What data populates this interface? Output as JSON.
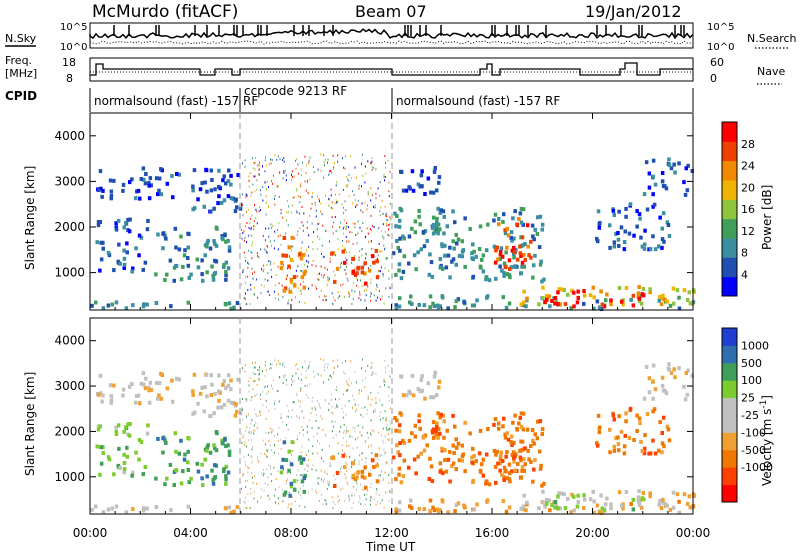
{
  "header": {
    "station": "McMurdo (fitACF)",
    "beam": "Beam 07",
    "date": "19/Jan/2012"
  },
  "panels": {
    "nsky_label": "N.Sky",
    "nsky_ticks": [
      "10^5",
      "10^0"
    ],
    "nsearch_label": "N.Search",
    "freq_label_1": "Freq.",
    "freq_label_2": "[MHz]",
    "freq_ticks": [
      "18",
      "8"
    ],
    "nave_label": "Nave",
    "nave_ticks": [
      "60",
      "0"
    ],
    "cpid_label": "CPID",
    "cpid_segments": [
      "normalsound (fast) -157 RF",
      "ccpcode 9213 RF",
      "normalsound (fast) -157 RF"
    ]
  },
  "colors": {
    "power_scale": [
      "#0000ff",
      "#1f4fb0",
      "#3a8fa0",
      "#3f9f5a",
      "#8cc43c",
      "#f0b400",
      "#f08a00",
      "#f04000",
      "#ff0000"
    ],
    "velocity_scale": [
      "#ff0000",
      "#ff4000",
      "#f07800",
      "#f0a030",
      "#c0c0c0",
      "#c0c0c0",
      "#7ccc30",
      "#3f9f5a",
      "#2f6fb0",
      "#1f3fd0"
    ]
  },
  "chart_data": [
    {
      "type": "heatmap",
      "quantity": "Power",
      "ylabel": "Slant Range [km]",
      "xlabel": "Time UT",
      "x_ticks": [
        "00:00",
        "04:00",
        "08:00",
        "12:00",
        "16:00",
        "20:00",
        "00:00"
      ],
      "y_ticks": [
        1000,
        2000,
        3000,
        4000
      ],
      "ylim": [
        180,
        4500
      ],
      "colorbar_label": "Power [dB]",
      "colorbar_ticks": [
        28,
        24,
        20,
        16,
        12,
        8,
        4
      ]
    },
    {
      "type": "heatmap",
      "quantity": "Velocity",
      "ylabel": "Slant Range [km]",
      "xlabel": "Time UT",
      "x_ticks": [
        "00:00",
        "04:00",
        "08:00",
        "12:00",
        "16:00",
        "20:00",
        "00:00"
      ],
      "y_ticks": [
        1000,
        2000,
        3000,
        4000
      ],
      "ylim": [
        180,
        4500
      ],
      "colorbar_label": "Velocity [m s^-1]",
      "colorbar_ticks": [
        1000,
        500,
        100,
        25,
        -25,
        -100,
        -500,
        -1000
      ]
    }
  ]
}
